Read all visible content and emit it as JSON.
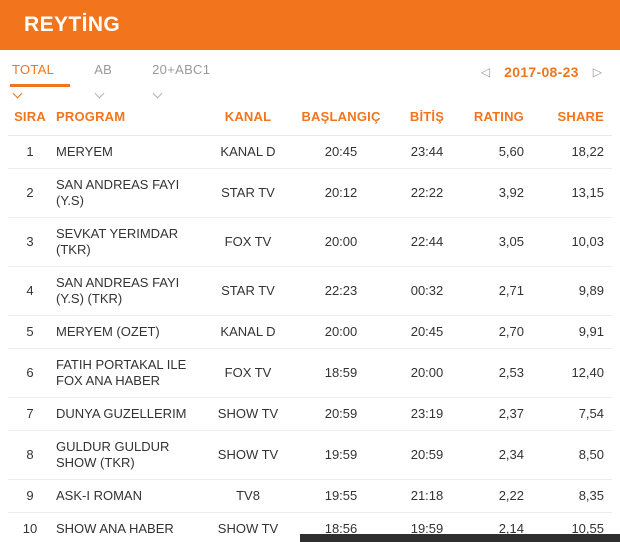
{
  "colors": {
    "accent": "#f2751d",
    "header_bg": "#f2751d",
    "row_border": "#ededed",
    "inactive_tab": "#9a9a9a",
    "footer_bar": "#2f2f2f"
  },
  "header": {
    "title": "REYTİNG"
  },
  "tabs": [
    {
      "key": "total",
      "label": "TOTAL",
      "active": true
    },
    {
      "key": "ab",
      "label": "AB",
      "active": false
    },
    {
      "key": "20abc1",
      "label": "20+ABC1",
      "active": false
    }
  ],
  "date_nav": {
    "prev_icon": "◁",
    "date": "2017-08-23",
    "next_icon": "▷"
  },
  "table": {
    "columns": [
      {
        "key": "sira",
        "label": "SIRA"
      },
      {
        "key": "program",
        "label": "PROGRAM"
      },
      {
        "key": "kanal",
        "label": "KANAL"
      },
      {
        "key": "baslangic",
        "label": "BAŞLANGIÇ"
      },
      {
        "key": "bitis",
        "label": "BİTİŞ"
      },
      {
        "key": "rating",
        "label": "RATING"
      },
      {
        "key": "share",
        "label": "SHARE"
      }
    ],
    "rows": [
      {
        "sira": "1",
        "program": "MERYEM",
        "kanal": "KANAL D",
        "baslangic": "20:45",
        "bitis": "23:44",
        "rating": "5,60",
        "share": "18,22"
      },
      {
        "sira": "2",
        "program": "SAN ANDREAS FAYI (Y.S)",
        "kanal": "STAR TV",
        "baslangic": "20:12",
        "bitis": "22:22",
        "rating": "3,92",
        "share": "13,15"
      },
      {
        "sira": "3",
        "program": "SEVKAT YERIMDAR (TKR)",
        "kanal": "FOX TV",
        "baslangic": "20:00",
        "bitis": "22:44",
        "rating": "3,05",
        "share": "10,03"
      },
      {
        "sira": "4",
        "program": "SAN ANDREAS FAYI (Y.S) (TKR)",
        "kanal": "STAR TV",
        "baslangic": "22:23",
        "bitis": "00:32",
        "rating": "2,71",
        "share": "9,89"
      },
      {
        "sira": "5",
        "program": "MERYEM (OZET)",
        "kanal": "KANAL D",
        "baslangic": "20:00",
        "bitis": "20:45",
        "rating": "2,70",
        "share": "9,91"
      },
      {
        "sira": "6",
        "program": "FATIH PORTAKAL ILE FOX ANA HABER",
        "kanal": "FOX TV",
        "baslangic": "18:59",
        "bitis": "20:00",
        "rating": "2,53",
        "share": "12,40"
      },
      {
        "sira": "7",
        "program": "DUNYA GUZELLERIM",
        "kanal": "SHOW TV",
        "baslangic": "20:59",
        "bitis": "23:19",
        "rating": "2,37",
        "share": "7,54"
      },
      {
        "sira": "8",
        "program": "GULDUR GULDUR SHOW (TKR)",
        "kanal": "SHOW TV",
        "baslangic": "19:59",
        "bitis": "20:59",
        "rating": "2,34",
        "share": "8,50"
      },
      {
        "sira": "9",
        "program": "ASK-I ROMAN",
        "kanal": "TV8",
        "baslangic": "19:55",
        "bitis": "21:18",
        "rating": "2,22",
        "share": "8,35"
      },
      {
        "sira": "10",
        "program": "SHOW ANA HABER",
        "kanal": "SHOW TV",
        "baslangic": "18:56",
        "bitis": "19:59",
        "rating": "2,14",
        "share": "10,55"
      }
    ]
  }
}
